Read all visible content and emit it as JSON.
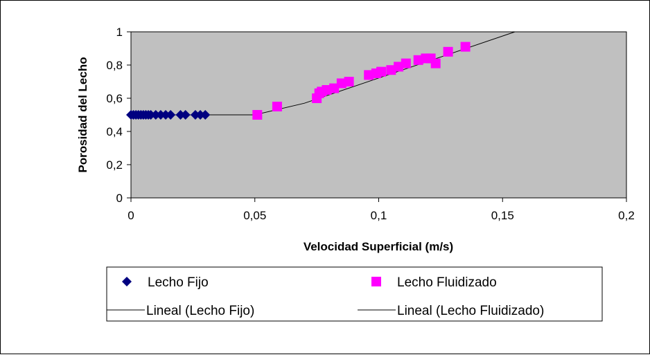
{
  "chart_data": {
    "type": "scatter",
    "title": "",
    "xlabel": "Velocidad Superficial (m/s)",
    "ylabel": "Porosidad del Lecho",
    "xlim": [
      0,
      0.2
    ],
    "ylim": [
      0,
      1
    ],
    "x_ticks": [
      0,
      0.05,
      0.1,
      0.15,
      0.2
    ],
    "x_tick_labels": [
      "0",
      "0,05",
      "0,1",
      "0,15",
      "0,2"
    ],
    "y_ticks": [
      0,
      0.2,
      0.4,
      0.6,
      0.8,
      1
    ],
    "y_tick_labels": [
      "0",
      "0,2",
      "0,4",
      "0,6",
      "0,8",
      "1"
    ],
    "grid": false,
    "plot_background": "#c0c0c0",
    "legend_position": "bottom",
    "series": [
      {
        "name": "Lecho Fijo",
        "marker": "diamond",
        "color": "#000080",
        "points": [
          [
            0.0,
            0.5
          ],
          [
            0.001,
            0.5
          ],
          [
            0.002,
            0.5
          ],
          [
            0.003,
            0.5
          ],
          [
            0.004,
            0.5
          ],
          [
            0.005,
            0.5
          ],
          [
            0.006,
            0.5
          ],
          [
            0.007,
            0.5
          ],
          [
            0.008,
            0.5
          ],
          [
            0.01,
            0.5
          ],
          [
            0.012,
            0.5
          ],
          [
            0.014,
            0.5
          ],
          [
            0.016,
            0.5
          ],
          [
            0.02,
            0.5
          ],
          [
            0.022,
            0.5
          ],
          [
            0.026,
            0.5
          ],
          [
            0.028,
            0.5
          ],
          [
            0.03,
            0.5
          ]
        ]
      },
      {
        "name": "Lecho Fluidizado",
        "marker": "square",
        "color": "#ff00ff",
        "points": [
          [
            0.051,
            0.5
          ],
          [
            0.059,
            0.55
          ],
          [
            0.075,
            0.6
          ],
          [
            0.076,
            0.63
          ],
          [
            0.077,
            0.64
          ],
          [
            0.079,
            0.65
          ],
          [
            0.082,
            0.66
          ],
          [
            0.085,
            0.69
          ],
          [
            0.088,
            0.7
          ],
          [
            0.096,
            0.74
          ],
          [
            0.099,
            0.75
          ],
          [
            0.101,
            0.76
          ],
          [
            0.105,
            0.77
          ],
          [
            0.108,
            0.79
          ],
          [
            0.111,
            0.81
          ],
          [
            0.116,
            0.83
          ],
          [
            0.119,
            0.84
          ],
          [
            0.121,
            0.84
          ],
          [
            0.123,
            0.81
          ],
          [
            0.128,
            0.88
          ],
          [
            0.135,
            0.91
          ]
        ]
      },
      {
        "name": "Lineal (Lecho Fijo)",
        "type": "line",
        "color": "#000000",
        "points": [
          [
            0.0,
            0.5
          ],
          [
            0.05,
            0.5
          ]
        ]
      },
      {
        "name": "Lineal (Lecho Fluidizado)",
        "type": "line",
        "color": "#000000",
        "points": [
          [
            0.05,
            0.5
          ],
          [
            0.07,
            0.57
          ],
          [
            0.155,
            1.0
          ]
        ]
      }
    ]
  }
}
